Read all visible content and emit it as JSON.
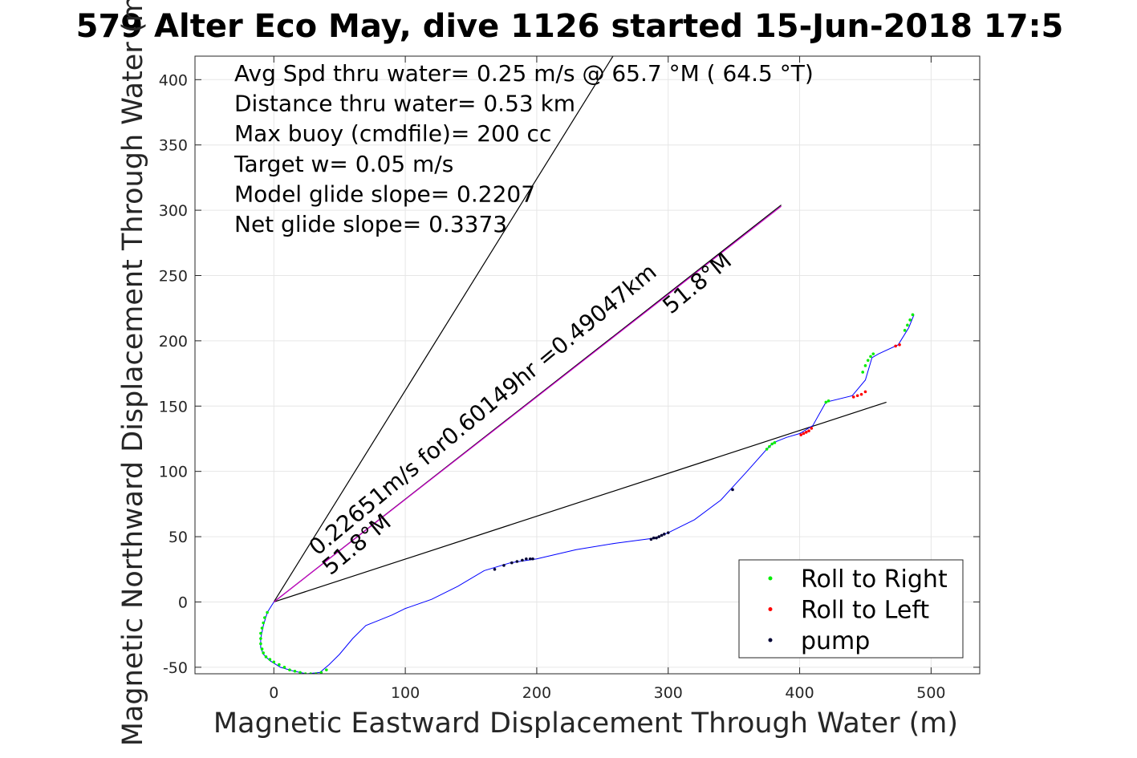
{
  "chart_data": {
    "type": "scatter",
    "title": "579 Alter Eco May, dive 1126 started 15-Jun-2018 17:5",
    "xlabel": "Magnetic Eastward Displacement Through Water (m)",
    "ylabel": "Magnetic Northward Displacement Through Water (m)",
    "xlim": [
      -60,
      537
    ],
    "ylim": [
      -55,
      418
    ],
    "xticks": [
      "0",
      "100",
      "200",
      "300",
      "400",
      "500"
    ],
    "xtick_values": [
      0,
      100,
      200,
      300,
      400,
      500
    ],
    "yticks": [
      "-50",
      "0",
      "50",
      "100",
      "150",
      "200",
      "250",
      "300",
      "350",
      "400"
    ],
    "ytick_values": [
      -50,
      0,
      50,
      100,
      150,
      200,
      250,
      300,
      350,
      400
    ],
    "grid": true,
    "legend_position": "bottom-right",
    "info_lines": [
      "Avg Spd thru water=  0.25 m/s @  65.7 °M ( 64.5 °T)",
      "Distance thru water=  0.53 km",
      "Max buoy (cmdfile)= 200 cc",
      "Target w= 0.05 m/s",
      "Model glide slope= 0.2207",
      "Net glide slope= 0.3373"
    ],
    "line_annotations": [
      {
        "text": "0.22651m/s for0.60149hr =0.49047km",
        "x": 33,
        "y": 35,
        "angle_deg": 39.6
      },
      {
        "text": "51.8°M",
        "x": 43,
        "y": 20,
        "angle_deg": 39.6
      },
      {
        "text": "51.8°M",
        "x": 302,
        "y": 220,
        "angle_deg": 39.6
      }
    ],
    "reference_lines": [
      {
        "name": "",
        "color": "#000000",
        "x": [
          0,
          258
        ],
        "y": [
          0,
          418
        ]
      },
      {
        "name": "",
        "color": "#000000",
        "x": [
          0,
          466
        ],
        "y": [
          0,
          153
        ]
      },
      {
        "name": "",
        "color": "#000000",
        "x": [
          0,
          386
        ],
        "y": [
          0,
          304
        ]
      },
      {
        "name": "",
        "color": "#cc00cc",
        "x": [
          0,
          386
        ],
        "y": [
          0,
          303
        ]
      }
    ],
    "track": {
      "color": "#0000ff",
      "x": [
        0,
        -5,
        -8,
        -10,
        -10,
        -8,
        -3,
        5,
        15,
        25,
        35,
        42,
        50,
        60,
        70,
        80,
        90,
        100,
        120,
        140,
        160,
        180,
        200,
        230,
        260,
        290,
        300,
        320,
        340,
        360,
        375,
        380,
        390,
        400,
        410,
        420,
        440,
        450,
        455,
        460,
        475,
        483,
        487
      ],
      "y": [
        0,
        -8,
        -18,
        -28,
        -35,
        -40,
        -45,
        -50,
        -53,
        -55,
        -54,
        -48,
        -40,
        -28,
        -18,
        -14,
        -10,
        -5,
        2,
        12,
        24,
        30,
        33,
        40,
        45,
        49,
        53,
        63,
        78,
        100,
        117,
        122,
        126,
        129,
        135,
        153,
        158,
        170,
        187,
        190,
        197,
        210,
        220
      ]
    },
    "series": [
      {
        "name": "Roll to Right",
        "color": "#00ee00",
        "x": [
          -5,
          -7,
          -8,
          -9,
          -10,
          -10,
          -10,
          -9,
          -8,
          -6,
          -3,
          0,
          4,
          8,
          12,
          16,
          20,
          24,
          28,
          32,
          36,
          40,
          375,
          377,
          379,
          381,
          420,
          422,
          448,
          450,
          452,
          454,
          456,
          480,
          482,
          484,
          486
        ],
        "y": [
          -8,
          -12,
          -16,
          -20,
          -24,
          -28,
          -32,
          -36,
          -39,
          -42,
          -44,
          -46,
          -48,
          -50,
          -52,
          -53,
          -54,
          -55,
          -55,
          -55,
          -54,
          -52,
          117,
          119,
          121,
          122,
          153,
          154,
          176,
          181,
          185,
          188,
          190,
          208,
          212,
          216,
          220
        ]
      },
      {
        "name": "Roll to Left",
        "color": "#ff0000",
        "x": [
          401,
          403,
          405,
          407,
          409,
          441,
          444,
          447,
          450,
          473,
          476
        ],
        "y": [
          128,
          129,
          130,
          131,
          133,
          157,
          158,
          159,
          161,
          196,
          197
        ]
      },
      {
        "name": "pump",
        "color": "#000033",
        "x": [
          168,
          175,
          181,
          185,
          189,
          192,
          195,
          197,
          287,
          289,
          291,
          293,
          295,
          297,
          300,
          349
        ],
        "y": [
          25,
          28,
          30,
          31,
          32,
          33,
          33,
          33,
          48,
          49,
          49,
          50,
          51,
          52,
          53,
          86
        ]
      }
    ]
  }
}
